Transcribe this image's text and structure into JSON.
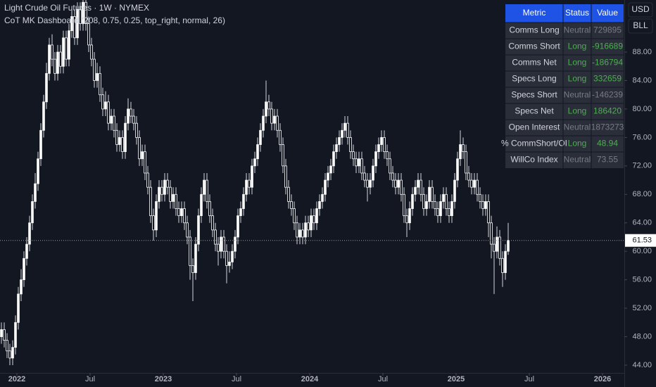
{
  "chart_data": {
    "type": "candlestick",
    "title": "Light Crude Oil Futures · 1W · NYMEX",
    "subtitle": "CoT MK Dashboard (208, 0.75, 0.25, top_right, normal, 26)",
    "up_color": "#ffffff",
    "down_color": "#131722",
    "wick_color": "#d1d4dc",
    "grid": false,
    "ylim": [
      42.91,
      95.32
    ],
    "yticks": [
      {
        "value": 44,
        "label": "44.00"
      },
      {
        "value": 48,
        "label": "48.00"
      },
      {
        "value": 52,
        "label": "52.00"
      },
      {
        "value": 56,
        "label": "56.00"
      },
      {
        "value": 60,
        "label": "60.00"
      },
      {
        "value": 64,
        "label": "64.00"
      },
      {
        "value": 68,
        "label": "68.00"
      },
      {
        "value": 72,
        "label": "72.00"
      },
      {
        "value": 76,
        "label": "76.00"
      },
      {
        "value": 80,
        "label": "80.00"
      },
      {
        "value": 84,
        "label": "84.00"
      },
      {
        "value": 88,
        "label": "88.00"
      }
    ],
    "xlim": [
      -0.5,
      221.25
    ],
    "xticks": [
      {
        "value": 5.5,
        "label": "2022"
      },
      {
        "value": 31.5,
        "label": "Jul"
      },
      {
        "value": 57.5,
        "label": "2023"
      },
      {
        "value": 83.5,
        "label": "Jul"
      },
      {
        "value": 109.5,
        "label": "2024"
      },
      {
        "value": 135.5,
        "label": "Jul"
      },
      {
        "value": 161.5,
        "label": "2025"
      },
      {
        "value": 187.5,
        "label": "Jul"
      },
      {
        "value": 213.5,
        "label": "2026"
      }
    ],
    "candles": [
      [
        48,
        50,
        47,
        49
      ],
      [
        49,
        50,
        46.5,
        47.5
      ],
      [
        47.5,
        48.5,
        45,
        46
      ],
      [
        46,
        47,
        44,
        45
      ],
      [
        45,
        47.5,
        44,
        46.5
      ],
      [
        46.5,
        51,
        45.5,
        50
      ],
      [
        50,
        55,
        49,
        54
      ],
      [
        54,
        57.5,
        53,
        56
      ],
      [
        56,
        60,
        55,
        59
      ],
      [
        59,
        62,
        58,
        61
      ],
      [
        61,
        65,
        60,
        64
      ],
      [
        64,
        68,
        63,
        67
      ],
      [
        67,
        71,
        66,
        69.5
      ],
      [
        69.5,
        74,
        68.5,
        73
      ],
      [
        73,
        78,
        72,
        77
      ],
      [
        77,
        82,
        76,
        81
      ],
      [
        81,
        86.5,
        80,
        85
      ],
      [
        85,
        90,
        84,
        89
      ],
      [
        89,
        90.5,
        86,
        87
      ],
      [
        87,
        88,
        84,
        85
      ],
      [
        85,
        89,
        84,
        88
      ],
      [
        88,
        89,
        85,
        86
      ],
      [
        86,
        91,
        85,
        90
      ],
      [
        90,
        91,
        86,
        87
      ],
      [
        87,
        92,
        86,
        91
      ],
      [
        91,
        94,
        90,
        93
      ],
      [
        93,
        94,
        89,
        90
      ],
      [
        90,
        95,
        89,
        94
      ],
      [
        94,
        95,
        91,
        92
      ],
      [
        92,
        96,
        91,
        95
      ],
      [
        95,
        96,
        91,
        92
      ],
      [
        92,
        93,
        88,
        89
      ],
      [
        89,
        90,
        86,
        87
      ],
      [
        87,
        88,
        83,
        84
      ],
      [
        84,
        86.5,
        83,
        85
      ],
      [
        85,
        86,
        81,
        82
      ],
      [
        82,
        83,
        79,
        80
      ],
      [
        80,
        82.5,
        79,
        81
      ],
      [
        81,
        82,
        77,
        78
      ],
      [
        78,
        80,
        77,
        79
      ],
      [
        79,
        80,
        76,
        77
      ],
      [
        77,
        78,
        74,
        75
      ],
      [
        75,
        77,
        74,
        76
      ],
      [
        76,
        77,
        73,
        74
      ],
      [
        74,
        79,
        73,
        78
      ],
      [
        78,
        81.5,
        77,
        80
      ],
      [
        80,
        81,
        78,
        79
      ],
      [
        79,
        80,
        77,
        78
      ],
      [
        78,
        79,
        75,
        76
      ],
      [
        76,
        77,
        72,
        73
      ],
      [
        73,
        75,
        72,
        74
      ],
      [
        74,
        75,
        70,
        71
      ],
      [
        71,
        72,
        68,
        69
      ],
      [
        69,
        70,
        64,
        65
      ],
      [
        65,
        66,
        61.5,
        63
      ],
      [
        63,
        68,
        62,
        67
      ],
      [
        67,
        70,
        66,
        69
      ],
      [
        69,
        70,
        67,
        68
      ],
      [
        68,
        71,
        67,
        70
      ],
      [
        70,
        71,
        68,
        69
      ],
      [
        69,
        70,
        66,
        67
      ],
      [
        67,
        69,
        66,
        68
      ],
      [
        68,
        69,
        65,
        66
      ],
      [
        66,
        67,
        64,
        65
      ],
      [
        65,
        67,
        64,
        66
      ],
      [
        66,
        67,
        63,
        64
      ],
      [
        64,
        65,
        61,
        62
      ],
      [
        62,
        63,
        56,
        58
      ],
      [
        58,
        59,
        53,
        57
      ],
      [
        57,
        62,
        56,
        61
      ],
      [
        61,
        66,
        60,
        65
      ],
      [
        65,
        69,
        64,
        68
      ],
      [
        68,
        71,
        67,
        70
      ],
      [
        70,
        71,
        66,
        67
      ],
      [
        67,
        68,
        64,
        65
      ],
      [
        65,
        66,
        62,
        63
      ],
      [
        63,
        64,
        60,
        61
      ],
      [
        61,
        62,
        58,
        60
      ],
      [
        60,
        63,
        59,
        62
      ],
      [
        62,
        63,
        59,
        60
      ],
      [
        60,
        61,
        55.5,
        58
      ],
      [
        58,
        60,
        57,
        58.5
      ],
      [
        58.5,
        61,
        57.5,
        60
      ],
      [
        60,
        63,
        59,
        62
      ],
      [
        62,
        66,
        61,
        65
      ],
      [
        65,
        67,
        64,
        66
      ],
      [
        66,
        69,
        65,
        68
      ],
      [
        68,
        71,
        67,
        70
      ],
      [
        70,
        71,
        68,
        69
      ],
      [
        69,
        73,
        68,
        72
      ],
      [
        72,
        74,
        71,
        73
      ],
      [
        73,
        76,
        72,
        75
      ],
      [
        75,
        78,
        74,
        77
      ],
      [
        77,
        80,
        76,
        79
      ],
      [
        79,
        84,
        78,
        81
      ],
      [
        81,
        82,
        79,
        80
      ],
      [
        80,
        81,
        77,
        78
      ],
      [
        78,
        80,
        77,
        79
      ],
      [
        79,
        80,
        76,
        77
      ],
      [
        77,
        78,
        74,
        75
      ],
      [
        75,
        76,
        71,
        72
      ],
      [
        72,
        73,
        68,
        69
      ],
      [
        69,
        70,
        66,
        67
      ],
      [
        67,
        68,
        65,
        66
      ],
      [
        66,
        67,
        63,
        64
      ],
      [
        64,
        65,
        61,
        62
      ],
      [
        62,
        64,
        61,
        63
      ],
      [
        63,
        64,
        61,
        62
      ],
      [
        62,
        65,
        61,
        64
      ],
      [
        64,
        65,
        62,
        63
      ],
      [
        63,
        66,
        62,
        65
      ],
      [
        65,
        66,
        63,
        64
      ],
      [
        64,
        67,
        63,
        66
      ],
      [
        66,
        68,
        65,
        67
      ],
      [
        67,
        69,
        66,
        68
      ],
      [
        68,
        71,
        67,
        70
      ],
      [
        70,
        72,
        69,
        71
      ],
      [
        71,
        73,
        70,
        72
      ],
      [
        72,
        75,
        71,
        74
      ],
      [
        74,
        76,
        73,
        75
      ],
      [
        75,
        77,
        74,
        76
      ],
      [
        76,
        78,
        75,
        77
      ],
      [
        77,
        79,
        76,
        78
      ],
      [
        78,
        79,
        75,
        76
      ],
      [
        76,
        77,
        73,
        74
      ],
      [
        74,
        75,
        72,
        73
      ],
      [
        73,
        74,
        71,
        72
      ],
      [
        72,
        74,
        71,
        73
      ],
      [
        73,
        74,
        70,
        71
      ],
      [
        71,
        72,
        69,
        70
      ],
      [
        70,
        71,
        67,
        69
      ],
      [
        69,
        71,
        68,
        70
      ],
      [
        70,
        73,
        69,
        72
      ],
      [
        72,
        75,
        71,
        74
      ],
      [
        74,
        76,
        73,
        75
      ],
      [
        75,
        77,
        74,
        76
      ],
      [
        76,
        77,
        73,
        74
      ],
      [
        74,
        75,
        72,
        73
      ],
      [
        73,
        74,
        70,
        71
      ],
      [
        71,
        72,
        69,
        70
      ],
      [
        70,
        71,
        68,
        69
      ],
      [
        69,
        71,
        68,
        70
      ],
      [
        70,
        71,
        67,
        68
      ],
      [
        68,
        69,
        64,
        65
      ],
      [
        65,
        66,
        62,
        64
      ],
      [
        64,
        67,
        63,
        66
      ],
      [
        66,
        69,
        65,
        68
      ],
      [
        68,
        70,
        67,
        69
      ],
      [
        69,
        71,
        68,
        70
      ],
      [
        70,
        71,
        67,
        68
      ],
      [
        68,
        69,
        65,
        66
      ],
      [
        66,
        68,
        65,
        67
      ],
      [
        67,
        70,
        66,
        69
      ],
      [
        69,
        70,
        66,
        67
      ],
      [
        67,
        68,
        65,
        66
      ],
      [
        66,
        67,
        64,
        65
      ],
      [
        65,
        68,
        64,
        67
      ],
      [
        67,
        69,
        66,
        68
      ],
      [
        68,
        69,
        65,
        66
      ],
      [
        66,
        67,
        64,
        65
      ],
      [
        65,
        68,
        64,
        67
      ],
      [
        67,
        71,
        66,
        70
      ],
      [
        70,
        74,
        69,
        73
      ],
      [
        73,
        77,
        72,
        75
      ],
      [
        75,
        76,
        73,
        74
      ],
      [
        74,
        75,
        70,
        71
      ],
      [
        71,
        72,
        69,
        70
      ],
      [
        70,
        71,
        68,
        69
      ],
      [
        69,
        71,
        68,
        70
      ],
      [
        70,
        71,
        67,
        68
      ],
      [
        68,
        69,
        66,
        67
      ],
      [
        67,
        68,
        65,
        66
      ],
      [
        66,
        68,
        65,
        67
      ],
      [
        67,
        68,
        62,
        64
      ],
      [
        64,
        65,
        59,
        61
      ],
      [
        61,
        62,
        54,
        60
      ],
      [
        60,
        63.5,
        59,
        62
      ],
      [
        62,
        63,
        58,
        59
      ],
      [
        59,
        60,
        55,
        57
      ],
      [
        57,
        61,
        56,
        60
      ],
      [
        60,
        64,
        59.5,
        61.53
      ]
    ]
  },
  "table": {
    "columns": [
      "Metric",
      "Status",
      "Value"
    ],
    "status_colors": {
      "Neutral": "#787b86",
      "Long": "#4caf50"
    },
    "rows": [
      [
        "Comms Long",
        "Neutral",
        729895
      ],
      [
        "Comms Short",
        "Long",
        -916689
      ],
      [
        "Comms Net",
        "Long",
        -186794
      ],
      [
        "Specs Long",
        "Long",
        332659
      ],
      [
        "Specs Short",
        "Neutral",
        -146239
      ],
      [
        "Specs Net",
        "Long",
        186420
      ],
      [
        "Open Interest",
        "Neutral",
        1873273
      ],
      [
        "% CommShort/OI",
        "Long",
        48.94
      ],
      [
        "WillCo Index",
        "Neutral",
        73.55
      ]
    ]
  },
  "toolbar": [
    "USD",
    "BLL"
  ]
}
